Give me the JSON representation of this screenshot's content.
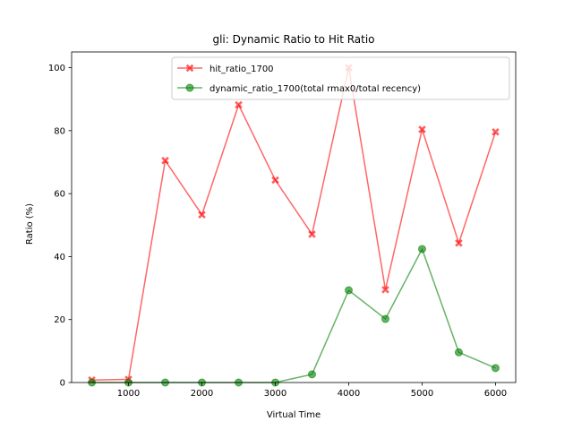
{
  "chart_data": {
    "type": "line",
    "title": "gli: Dynamic Ratio to Hit Ratio",
    "xlabel": "Virtual Time",
    "ylabel": "Ratio (%)",
    "xlim": [
      225,
      6275
    ],
    "ylim": [
      0,
      105
    ],
    "xticks": [
      1000,
      2000,
      3000,
      4000,
      5000,
      6000
    ],
    "yticks": [
      0,
      20,
      40,
      60,
      80,
      100
    ],
    "grid": false,
    "legend_position": "upper center",
    "x": [
      500,
      1000,
      1500,
      2000,
      2500,
      3000,
      3500,
      4000,
      4500,
      5000,
      5500,
      6000
    ],
    "series": [
      {
        "name": "hit_ratio_1700",
        "color": "#ff0000",
        "marker": "x-filled",
        "values": [
          0.8,
          1.0,
          70.5,
          53.3,
          88.2,
          64.3,
          47.1,
          100.0,
          29.5,
          80.4,
          44.3,
          79.6
        ]
      },
      {
        "name": "dynamic_ratio_1700(total rmax0/total recency)",
        "color": "#008000",
        "marker": "circle",
        "values": [
          0.0,
          0.0,
          0.0,
          0.0,
          0.0,
          0.0,
          2.6,
          29.3,
          20.2,
          42.4,
          9.6,
          4.6
        ]
      }
    ]
  }
}
